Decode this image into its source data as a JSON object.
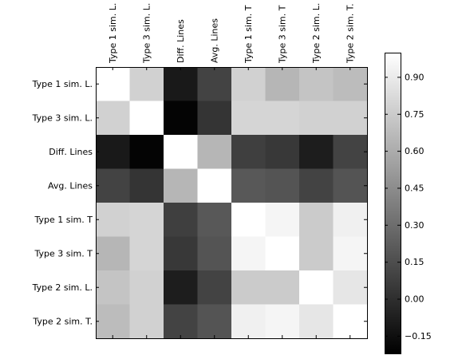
{
  "chart_data": {
    "type": "heatmap",
    "title": "",
    "xlabel": "",
    "ylabel": "",
    "colormap": "gray",
    "grid": false,
    "row_labels": [
      "Type 1 sim. L.",
      "Type 3 sim. L.",
      "Diff. Lines",
      "Avg. Lines",
      "Type 1 sim. T",
      "Type 3 sim. T",
      "Type 2 sim. L.",
      "Type 2 sim. T."
    ],
    "column_labels": [
      "Type 1 sim. L.",
      "Type 3 sim. L.",
      "Diff. Lines",
      "Avg. Lines",
      "Type 1 sim. T",
      "Type 3 sim. T",
      "Type 2 sim. L.",
      "Type 2 sim. T."
    ],
    "values": [
      [
        1.0,
        0.78,
        -0.1,
        0.1,
        0.78,
        0.65,
        0.72,
        0.68
      ],
      [
        0.78,
        1.0,
        -0.2,
        0.03,
        0.8,
        0.8,
        0.78,
        0.78
      ],
      [
        -0.1,
        -0.2,
        1.0,
        0.65,
        0.08,
        0.05,
        -0.08,
        0.1
      ],
      [
        0.1,
        0.03,
        0.65,
        1.0,
        0.2,
        0.18,
        0.1,
        0.18
      ],
      [
        0.78,
        0.8,
        0.08,
        0.2,
        1.0,
        0.95,
        0.75,
        0.93
      ],
      [
        0.65,
        0.8,
        0.05,
        0.18,
        0.95,
        1.0,
        0.75,
        0.95
      ],
      [
        0.72,
        0.78,
        -0.08,
        0.1,
        0.75,
        0.75,
        1.0,
        0.88
      ],
      [
        0.68,
        0.78,
        0.1,
        0.18,
        0.93,
        0.95,
        0.88,
        1.0
      ]
    ],
    "color_range": [
      -0.22,
      1.0
    ],
    "colorbar": {
      "ticks": [
        0.9,
        0.75,
        0.6,
        0.45,
        0.3,
        0.15,
        0.0,
        -0.15
      ],
      "tick_labels": [
        "0.90",
        "0.75",
        "0.60",
        "0.45",
        "0.30",
        "0.15",
        "0.00",
        "−0.15"
      ]
    }
  }
}
